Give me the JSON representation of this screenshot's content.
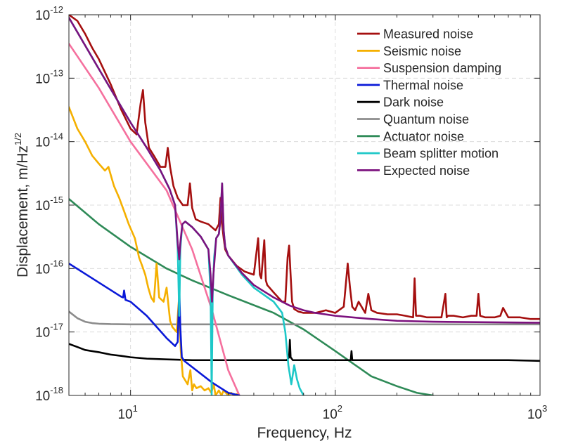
{
  "chart_data": {
    "type": "line",
    "xscale": "log",
    "yscale": "log",
    "xlim": [
      5,
      1000
    ],
    "ylim": [
      1e-18,
      1e-12
    ],
    "xlabel": "Frequency, Hz",
    "ylabel_main": "Displacement, m/Hz",
    "ylabel_exp": "1/2",
    "grid": true,
    "legend_position": "top-right",
    "x_ticks": [
      {
        "value": 10,
        "base": "10",
        "exp": "1"
      },
      {
        "value": 100,
        "base": "10",
        "exp": "2"
      },
      {
        "value": 1000,
        "base": "10",
        "exp": "3"
      }
    ],
    "y_ticks": [
      {
        "value": 1e-18,
        "base": "10",
        "exp": "-18"
      },
      {
        "value": 1e-17,
        "base": "10",
        "exp": "-17"
      },
      {
        "value": 1e-16,
        "base": "10",
        "exp": "-16"
      },
      {
        "value": 1e-15,
        "base": "10",
        "exp": "-15"
      },
      {
        "value": 1e-14,
        "base": "10",
        "exp": "-14"
      },
      {
        "value": 1e-13,
        "base": "10",
        "exp": "-13"
      },
      {
        "value": 1e-12,
        "base": "10",
        "exp": "-12"
      }
    ],
    "series": [
      {
        "name": "Measured noise",
        "color": "#a50f0f",
        "x": [
          5,
          5.5,
          6,
          6.5,
          7,
          8,
          9,
          10,
          10.7,
          11.2,
          11.5,
          11.8,
          12.3,
          13,
          14,
          14.8,
          15.2,
          15.6,
          16.2,
          17,
          18,
          19,
          19.5,
          20,
          20.8,
          22,
          24,
          26,
          27,
          27.5,
          28,
          28.5,
          29,
          30,
          33,
          36,
          40,
          42,
          42.8,
          43.5,
          45,
          45.8,
          46.5,
          50,
          55,
          57,
          58.5,
          59.5,
          60.5,
          61.5,
          63,
          66,
          70,
          80,
          90,
          100,
          110,
          115,
          118,
          121,
          125,
          130,
          140,
          145,
          150,
          160,
          180,
          200,
          220,
          240,
          244,
          248,
          260,
          280,
          300,
          330,
          345,
          350,
          355,
          380,
          420,
          460,
          490,
          500,
          510,
          540,
          600,
          640,
          660,
          700,
          800,
          900,
          1000
        ],
        "y": [
          1e-12,
          8e-13,
          5e-13,
          3e-13,
          2e-13,
          8e-14,
          3.2e-14,
          1.6e-14,
          1.3e-14,
          4e-14,
          6.5e-14,
          2e-14,
          8e-15,
          6e-15,
          4e-15,
          4e-15,
          8e-15,
          4e-15,
          2e-15,
          1.3e-15,
          1e-15,
          1e-15,
          2.2e-15,
          9e-16,
          6e-16,
          5.5e-16,
          5e-16,
          4e-16,
          5e-16,
          1.3e-15,
          5e-16,
          3e-16,
          2e-16,
          1.6e-16,
          1.1e-16,
          9e-17,
          8e-17,
          3e-16,
          8e-17,
          7e-17,
          2.8e-16,
          6.5e-17,
          5.5e-17,
          4.2e-17,
          3e-17,
          3e-17,
          1.5e-16,
          2.3e-16,
          8e-17,
          3e-17,
          2.3e-17,
          2.1e-17,
          2e-17,
          2e-17,
          2.2e-17,
          2e-17,
          2.5e-17,
          1.2e-16,
          5e-17,
          2.5e-17,
          2.2e-17,
          3e-17,
          2e-17,
          4e-17,
          2.2e-17,
          2e-17,
          1.9e-17,
          1.9e-17,
          1.8e-17,
          1.7e-17,
          7e-17,
          1.8e-17,
          1.8e-17,
          1.7e-17,
          1.7e-17,
          1.7e-17,
          4e-17,
          1.7e-17,
          1.8e-17,
          1.8e-17,
          1.7e-17,
          1.8e-17,
          1.8e-17,
          4e-17,
          1.8e-17,
          1.7e-17,
          1.7e-17,
          1.8e-17,
          2.4e-17,
          1.7e-17,
          1.7e-17,
          1.6e-17,
          1.6e-17
        ]
      },
      {
        "name": "Seismic noise",
        "color": "#f5b000",
        "x": [
          5,
          5.5,
          6,
          6.5,
          7,
          7.5,
          7.8,
          8,
          8.3,
          8.8,
          9.3,
          9.8,
          10.5,
          11,
          11.4,
          11.8,
          12.2,
          12.6,
          13,
          13.4,
          13.8,
          14.5,
          15,
          15.6,
          16,
          16.8,
          17.2,
          17.6,
          18,
          19,
          19.6,
          20,
          20.4,
          21,
          22,
          23,
          24,
          24.8,
          25.5,
          26,
          27,
          27.8,
          28.5,
          30,
          31,
          32,
          33,
          34
        ],
        "y": [
          3.5e-14,
          1.6e-14,
          1e-14,
          6e-15,
          4.5e-15,
          3.5e-15,
          4e-15,
          3e-15,
          2e-15,
          1.3e-15,
          8e-16,
          5e-16,
          3e-16,
          1.5e-16,
          1.1e-16,
          8e-17,
          5e-17,
          3.5e-17,
          3e-17,
          1.2e-16,
          3.5e-17,
          3e-17,
          5e-17,
          1.5e-17,
          1.2e-17,
          1e-17,
          3e-17,
          5e-18,
          2e-18,
          1.5e-18,
          2.5e-18,
          1.2e-18,
          1.5e-18,
          1.3e-18,
          1.4e-18,
          1.2e-18,
          1.3e-18,
          1.1e-18,
          1.5e-18,
          1e-18,
          1.2e-18,
          1e-18,
          1.2e-18,
          1e-18,
          1.1e-18,
          1e-18,
          1.05e-18,
          1e-18
        ]
      },
      {
        "name": "Suspension damping",
        "color": "#f5709e",
        "x": [
          5,
          7,
          10,
          15,
          20,
          25,
          30,
          34
        ],
        "y": [
          3.5e-13,
          7e-14,
          1e-14,
          1.7e-15,
          2e-16,
          2.2e-17,
          2.5e-18,
          1e-18
        ]
      },
      {
        "name": "Thermal noise",
        "color": "#0a19d8",
        "x": [
          5,
          9,
          9.2,
          9.3,
          9.45,
          10,
          12,
          15,
          16.5,
          17,
          17.3,
          17.5,
          17.8,
          18.3,
          20,
          25,
          30,
          34
        ],
        "y": [
          1.2e-16,
          3.6e-17,
          3.5e-17,
          4.5e-17,
          3.2e-17,
          3e-17,
          1.8e-17,
          8e-18,
          6e-18,
          7e-18,
          5e-17,
          1.2e-17,
          4e-18,
          3.5e-18,
          2.8e-18,
          1.6e-18,
          1.1e-18,
          1e-18
        ]
      },
      {
        "name": "Dark noise",
        "color": "#000000",
        "x": [
          5,
          5.5,
          6,
          7,
          8,
          9,
          10,
          12,
          15,
          20,
          30,
          40,
          50,
          58,
          59.5,
          60,
          60.5,
          62,
          70,
          80,
          100,
          119,
          120,
          121,
          150,
          200,
          300,
          500,
          700,
          1000
        ],
        "y": [
          6.5e-18,
          5.8e-18,
          5.2e-18,
          4.8e-18,
          4.4e-18,
          4.2e-18,
          4e-18,
          3.8e-18,
          3.7e-18,
          3.6e-18,
          3.6e-18,
          3.6e-18,
          3.6e-18,
          3.6e-18,
          4e-18,
          7.5e-18,
          4e-18,
          3.6e-18,
          3.6e-18,
          3.6e-18,
          3.6e-18,
          3.6e-18,
          5e-18,
          3.6e-18,
          3.6e-18,
          3.6e-18,
          3.6e-18,
          3.6e-18,
          3.6e-18,
          3.5e-18
        ]
      },
      {
        "name": "Quantum noise",
        "color": "#8c8c8c",
        "x": [
          5,
          5.5,
          6,
          6.5,
          7,
          8,
          10,
          20,
          100,
          1000
        ],
        "y": [
          2.1e-17,
          1.65e-17,
          1.45e-17,
          1.38e-17,
          1.35e-17,
          1.33e-17,
          1.32e-17,
          1.32e-17,
          1.32e-17,
          1.32e-17
        ]
      },
      {
        "name": "Actuator noise",
        "color": "#2e8a57",
        "x": [
          5,
          7,
          10,
          15,
          20,
          30,
          50,
          70,
          100,
          150,
          200,
          250,
          300
        ],
        "y": [
          1.25e-15,
          5e-16,
          2.2e-16,
          1e-16,
          6.5e-17,
          3.8e-17,
          2e-17,
          1.1e-17,
          5e-18,
          2e-18,
          1.4e-18,
          1.1e-18,
          1e-18
        ]
      },
      {
        "name": "Beam splitter motion",
        "color": "#1ec8c8",
        "x": [
          5,
          7,
          10,
          12,
          14,
          15.5,
          16.5,
          17,
          17.3,
          17.5,
          17.9,
          18.5,
          20,
          22,
          24,
          24.6,
          24.9,
          25.2,
          25.6,
          26.2,
          27,
          27.5,
          28,
          28.5,
          29,
          30,
          35,
          40,
          50,
          55,
          57,
          59,
          61,
          63,
          65,
          67,
          70
        ],
        "y": [
          9e-13,
          1.4e-13,
          2e-14,
          8e-15,
          3.5e-15,
          1.8e-15,
          1e-15,
          2e-16,
          1.8e-17,
          2e-16,
          5e-16,
          5.5e-16,
          4.5e-16,
          3.2e-16,
          2e-16,
          4e-17,
          1e-18,
          4e-17,
          1.5e-16,
          3e-16,
          3.5e-16,
          6e-16,
          2.2e-15,
          4e-16,
          2.2e-16,
          1.6e-16,
          8e-17,
          5e-17,
          3e-17,
          2e-17,
          1e-17,
          3e-18,
          1.5e-18,
          3e-18,
          1.8e-18,
          1.3e-18,
          1e-18
        ]
      },
      {
        "name": "Expected noise",
        "color": "#7c117e",
        "x": [
          5,
          7,
          10,
          12,
          14,
          15.5,
          16.5,
          17,
          17.3,
          17.5,
          17.9,
          18.5,
          20,
          22,
          24,
          24.6,
          25,
          25.4,
          26.2,
          27,
          27.5,
          28,
          28.5,
          29,
          30,
          35,
          40,
          50,
          60,
          70,
          80,
          100,
          150,
          200,
          300,
          1000
        ],
        "y": [
          9e-13,
          1.4e-13,
          2e-14,
          8e-15,
          3.5e-15,
          1.8e-15,
          1e-15,
          2.5e-16,
          1.4e-16,
          2.5e-16,
          5e-16,
          5.5e-16,
          4.5e-16,
          3.2e-16,
          2e-16,
          8e-17,
          3e-17,
          8e-17,
          3e-16,
          3.5e-16,
          6e-16,
          2.2e-15,
          4e-16,
          2.2e-16,
          1.6e-16,
          8.5e-17,
          5.5e-17,
          3.5e-17,
          2.6e-17,
          2.2e-17,
          2e-17,
          1.8e-17,
          1.6e-17,
          1.5e-17,
          1.45e-17,
          1.4e-17
        ]
      }
    ]
  }
}
